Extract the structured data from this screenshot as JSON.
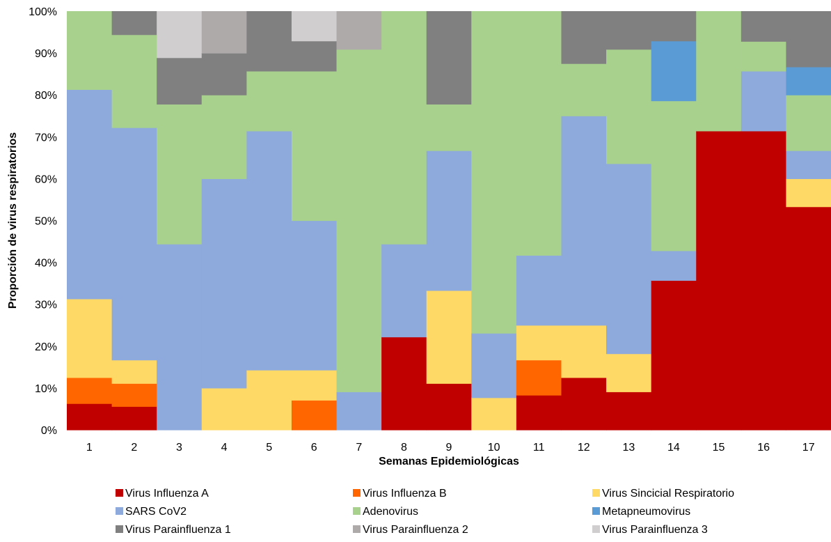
{
  "chart_data": {
    "type": "bar",
    "stacked": true,
    "normalized": true,
    "xlabel": "Semanas Epidemiológicas",
    "ylabel": "Proporción de virus respiratorios",
    "ylim": [
      0,
      100
    ],
    "yticks": [
      "0%",
      "10%",
      "20%",
      "30%",
      "40%",
      "50%",
      "60%",
      "70%",
      "80%",
      "90%",
      "100%"
    ],
    "categories": [
      "1",
      "2",
      "3",
      "4",
      "5",
      "6",
      "7",
      "8",
      "9",
      "10",
      "11",
      "12",
      "13",
      "14",
      "15",
      "16",
      "17"
    ],
    "grid": false,
    "legend_position": "bottom",
    "series": [
      {
        "name": "Virus Influenza A",
        "color": "#C00000",
        "values": [
          6.3,
          5.6,
          0,
          0,
          0,
          0,
          0,
          22.2,
          11.1,
          0,
          8.3,
          12.5,
          9.1,
          35.7,
          71.4,
          71.4,
          53.3
        ]
      },
      {
        "name": "Virus Influenza B",
        "color": "#FF6600",
        "values": [
          6.2,
          5.5,
          0,
          0,
          0,
          7.1,
          0,
          0,
          0,
          0,
          8.4,
          0,
          0,
          0,
          0,
          0,
          0
        ]
      },
      {
        "name": "Virus Sincicial Respiratorio",
        "color": "#FFD966",
        "values": [
          18.8,
          5.6,
          0,
          10,
          14.3,
          7.2,
          0,
          0,
          22.2,
          7.7,
          8.3,
          12.5,
          9.1,
          0,
          0,
          0,
          6.7
        ]
      },
      {
        "name": "SARS CoV2",
        "color": "#8EA9DB",
        "values": [
          50,
          55.5,
          44.4,
          50,
          57.1,
          35.7,
          9.1,
          22.2,
          33.4,
          15.4,
          16.7,
          50,
          45.4,
          7.1,
          0,
          14.3,
          6.7
        ]
      },
      {
        "name": "Adenovirus",
        "color": "#A9D18E",
        "values": [
          18.7,
          22.2,
          33.4,
          20,
          14.3,
          35.7,
          81.8,
          55.6,
          11.1,
          76.9,
          58.3,
          12.5,
          27.3,
          35.8,
          28.6,
          7.1,
          13.3
        ]
      },
      {
        "name": "Metapneumovirus",
        "color": "#5B9BD5",
        "values": [
          0,
          0,
          0,
          0,
          0,
          0,
          0,
          0,
          0,
          0,
          0,
          0,
          0,
          14.3,
          0,
          0,
          6.7
        ]
      },
      {
        "name": "Virus Parainfluenza 1",
        "color": "#808080",
        "values": [
          0,
          5.6,
          11.1,
          10,
          14.3,
          7.2,
          0,
          0,
          22.2,
          0,
          0,
          12.5,
          9.1,
          7.1,
          0,
          7.2,
          13.3
        ]
      },
      {
        "name": "Virus Parainfluenza 2",
        "color": "#AEAAAA",
        "values": [
          0,
          0,
          0,
          10,
          0,
          0,
          9.1,
          0,
          0,
          0,
          0,
          0,
          0,
          0,
          0,
          0,
          0
        ]
      },
      {
        "name": "Virus Parainfluenza 3",
        "color": "#D0CECE",
        "values": [
          0,
          0,
          11.1,
          0,
          0,
          7.1,
          0,
          0,
          0,
          0,
          0,
          0,
          0,
          0,
          0,
          0,
          0
        ]
      }
    ]
  }
}
